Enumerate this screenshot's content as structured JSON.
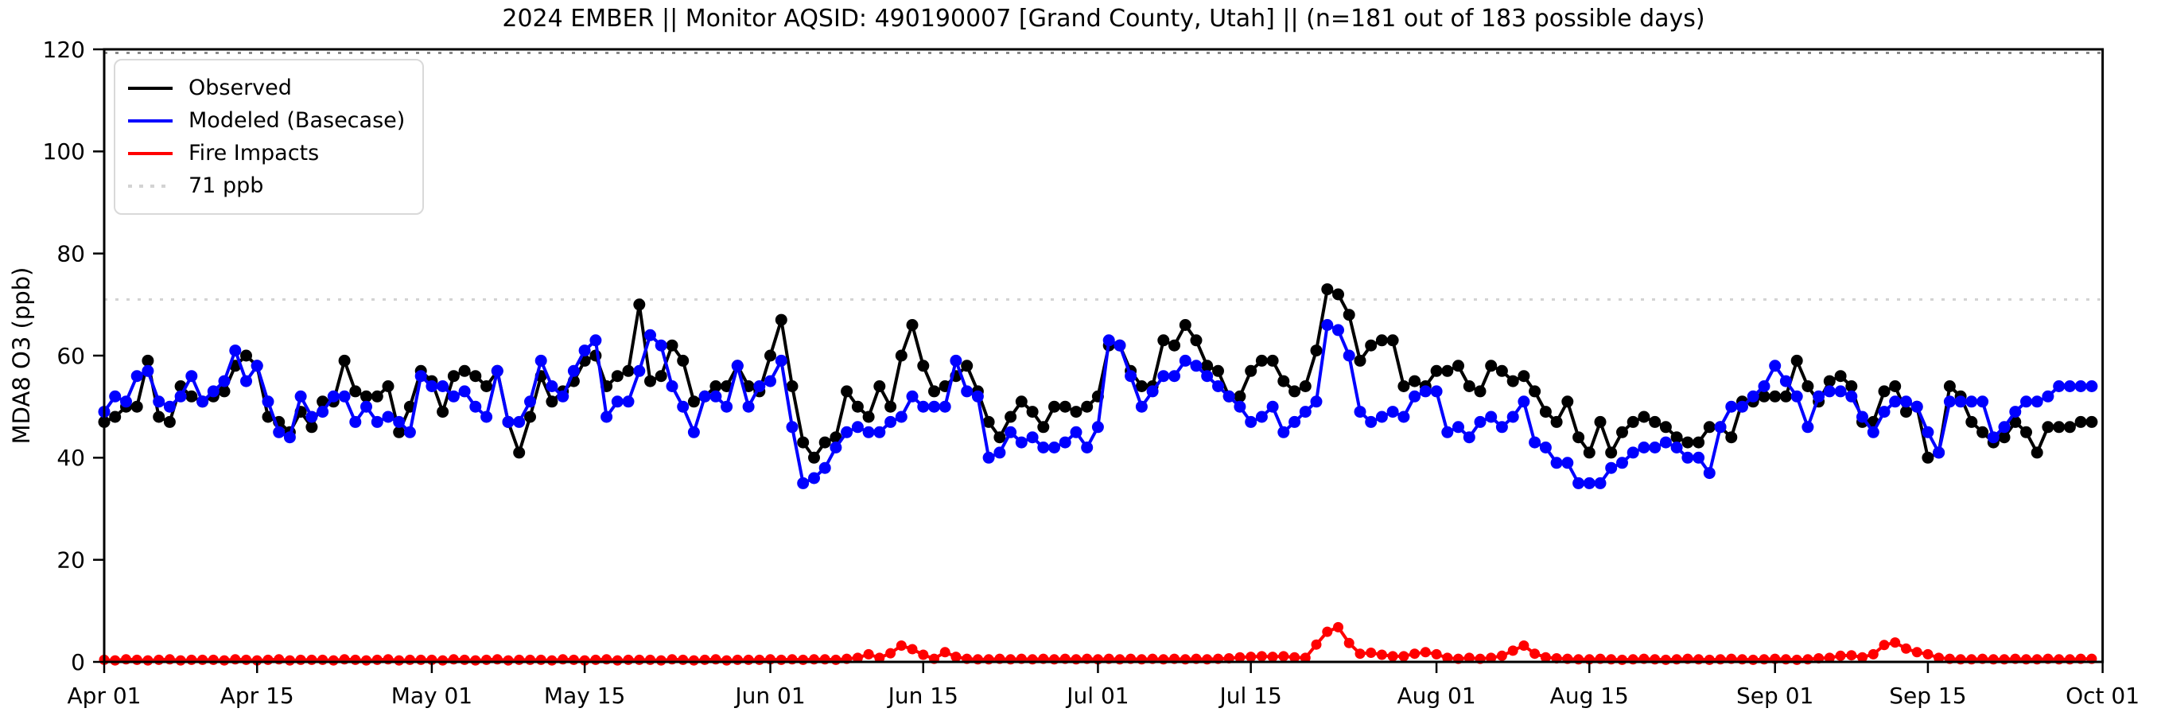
{
  "title": "2024 EMBER || Monitor AQSID: 490190007 [Grand County, Utah] || (n=181 out of 183 possible days)",
  "legend": [
    {
      "label": "Observed",
      "color": "#000000",
      "style": "solid"
    },
    {
      "label": "Modeled (Basecase)",
      "color": "#0000ff",
      "style": "solid"
    },
    {
      "label": "Fire Impacts",
      "color": "#ff0000",
      "style": "solid"
    },
    {
      "label": "71 ppb",
      "color": "#d3d3d3",
      "style": "dotted"
    }
  ],
  "chart_data": {
    "type": "line",
    "title": "2024 EMBER || Monitor AQSID: 490190007 [Grand County, Utah] || (n=181 out of 183 possible days)",
    "xlabel": "",
    "ylabel": "MDA8 O3 (ppb)",
    "ylim": [
      0,
      120
    ],
    "y_ticks": [
      0,
      20,
      40,
      60,
      80,
      100,
      120
    ],
    "x_range_days": 183,
    "x_start": "Apr 01",
    "x_end": "Oct 01",
    "x_ticks": [
      {
        "label": "Apr 01",
        "day": 0
      },
      {
        "label": "Apr 15",
        "day": 14
      },
      {
        "label": "May 01",
        "day": 30
      },
      {
        "label": "May 15",
        "day": 44
      },
      {
        "label": "Jun 01",
        "day": 61
      },
      {
        "label": "Jun 15",
        "day": 75
      },
      {
        "label": "Jul 01",
        "day": 91
      },
      {
        "label": "Jul 15",
        "day": 105
      },
      {
        "label": "Aug 01",
        "day": 122
      },
      {
        "label": "Aug 15",
        "day": 136
      },
      {
        "label": "Sep 01",
        "day": 153
      },
      {
        "label": "Sep 15",
        "day": 167
      },
      {
        "label": "Oct 01",
        "day": 183
      }
    ],
    "threshold_line": {
      "label": "71 ppb",
      "value": 71,
      "color": "#d3d3d3",
      "style": "dotted"
    },
    "top_reference_line": {
      "value": 119.3,
      "color": "#777777",
      "style": "dotted"
    },
    "grid": false,
    "legend_position": "upper left",
    "series": [
      {
        "name": "Observed",
        "color": "#000000",
        "marker": "circle",
        "marker_radius": 7.5,
        "line_width": 4,
        "values": [
          47,
          48,
          50,
          50,
          59,
          48,
          47,
          54,
          52,
          51,
          52,
          53,
          58,
          60,
          58,
          48,
          47,
          45,
          49,
          46,
          51,
          51,
          59,
          53,
          52,
          52,
          54,
          45,
          50,
          57,
          55,
          49,
          56,
          57,
          56,
          54,
          57,
          47,
          41,
          48,
          56,
          51,
          53,
          55,
          59,
          60,
          54,
          56,
          57,
          70,
          55,
          56,
          62,
          59,
          51,
          52,
          54,
          54,
          58,
          54,
          53,
          60,
          67,
          54,
          43,
          40,
          43,
          44,
          53,
          50,
          48,
          54,
          50,
          60,
          66,
          58,
          53,
          54,
          56,
          58,
          53,
          47,
          44,
          48,
          51,
          49,
          46,
          50,
          50,
          49,
          50,
          52,
          62,
          62,
          57,
          54,
          54,
          63,
          62,
          66,
          63,
          58,
          57,
          52,
          52,
          57,
          59,
          59,
          55,
          53,
          54,
          61,
          73,
          72,
          68,
          59,
          62,
          63,
          63,
          54,
          55,
          54,
          57,
          57,
          58,
          54,
          53,
          58,
          57,
          55,
          56,
          53,
          49,
          47,
          51,
          44,
          41,
          47,
          41,
          45,
          47,
          48,
          47,
          46,
          44,
          43,
          43,
          46,
          46,
          44,
          51,
          51,
          52,
          52,
          52,
          59,
          54,
          51,
          55,
          56,
          54,
          47,
          47,
          53,
          54,
          49,
          50,
          40,
          41,
          54,
          52,
          47,
          45,
          43,
          44,
          47,
          45,
          41,
          46,
          46,
          46,
          47,
          47
        ]
      },
      {
        "name": "Modeled (Basecase)",
        "color": "#0000ff",
        "marker": "circle",
        "marker_radius": 7.5,
        "line_width": 4,
        "values": [
          49,
          52,
          51,
          56,
          57,
          51,
          50,
          52,
          56,
          51,
          53,
          55,
          61,
          55,
          58,
          51,
          45,
          44,
          52,
          48,
          49,
          52,
          52,
          47,
          50,
          47,
          48,
          47,
          45,
          56,
          54,
          54,
          52,
          53,
          50,
          48,
          57,
          47,
          47,
          51,
          59,
          54,
          52,
          57,
          61,
          63,
          48,
          51,
          51,
          57,
          64,
          62,
          54,
          50,
          45,
          52,
          52,
          50,
          58,
          50,
          54,
          55,
          59,
          46,
          35,
          36,
          38,
          42,
          45,
          46,
          45,
          45,
          47,
          48,
          52,
          50,
          50,
          50,
          59,
          53,
          52,
          40,
          41,
          45,
          43,
          44,
          42,
          42,
          43,
          45,
          42,
          46,
          63,
          62,
          56,
          50,
          53,
          56,
          56,
          59,
          58,
          56,
          54,
          52,
          50,
          47,
          48,
          50,
          45,
          47,
          49,
          51,
          66,
          65,
          60,
          49,
          47,
          48,
          49,
          48,
          52,
          53,
          53,
          45,
          46,
          44,
          47,
          48,
          46,
          48,
          51,
          43,
          42,
          39,
          39,
          35,
          35,
          35,
          38,
          39,
          41,
          42,
          42,
          43,
          42,
          40,
          40,
          37,
          46,
          50,
          50,
          52,
          54,
          58,
          55,
          52,
          46,
          52,
          53,
          53,
          52,
          48,
          45,
          49,
          51,
          51,
          50,
          45,
          41,
          51,
          51,
          51,
          51,
          44,
          46,
          49,
          51,
          51,
          52,
          54,
          54,
          54,
          54
        ]
      },
      {
        "name": "Fire Impacts",
        "color": "#ff0000",
        "marker": "circle",
        "marker_radius": 6.5,
        "line_width": 4,
        "values": [
          0.4,
          0.3,
          0.5,
          0.4,
          0.3,
          0.4,
          0.5,
          0.3,
          0.4,
          0.4,
          0.4,
          0.3,
          0.5,
          0.4,
          0.3,
          0.4,
          0.5,
          0.3,
          0.4,
          0.4,
          0.4,
          0.3,
          0.5,
          0.4,
          0.3,
          0.4,
          0.5,
          0.3,
          0.4,
          0.4,
          0.4,
          0.3,
          0.5,
          0.4,
          0.3,
          0.4,
          0.5,
          0.3,
          0.4,
          0.4,
          0.4,
          0.3,
          0.5,
          0.4,
          0.3,
          0.4,
          0.5,
          0.3,
          0.4,
          0.4,
          0.4,
          0.3,
          0.5,
          0.4,
          0.3,
          0.4,
          0.5,
          0.3,
          0.4,
          0.4,
          0.4,
          0.5,
          0.4,
          0.5,
          0.4,
          0.5,
          0.5,
          0.4,
          0.6,
          0.8,
          1.5,
          0.8,
          1.7,
          3.2,
          2.5,
          1.4,
          0.6,
          1.9,
          1.0,
          0.6,
          0.5,
          0.5,
          0.6,
          0.5,
          0.6,
          0.5,
          0.6,
          0.5,
          0.6,
          0.5,
          0.6,
          0.5,
          0.6,
          0.5,
          0.6,
          0.5,
          0.6,
          0.5,
          0.6,
          0.5,
          0.6,
          0.5,
          0.6,
          0.7,
          0.9,
          1.0,
          1.1,
          1.0,
          1.1,
          0.9,
          0.8,
          3.4,
          5.9,
          6.8,
          3.7,
          1.6,
          1.8,
          1.4,
          1.1,
          1.1,
          1.6,
          1.9,
          1.5,
          0.8,
          0.6,
          0.8,
          0.6,
          0.8,
          1.2,
          2.2,
          3.2,
          1.6,
          0.9,
          0.7,
          0.6,
          0.5,
          0.5,
          0.6,
          0.5,
          0.4,
          0.5,
          0.6,
          0.5,
          0.4,
          0.5,
          0.6,
          0.5,
          0.4,
          0.5,
          0.6,
          0.5,
          0.4,
          0.5,
          0.6,
          0.5,
          0.4,
          0.5,
          0.7,
          0.8,
          1.2,
          1.3,
          0.9,
          1.5,
          3.3,
          3.8,
          2.6,
          1.9,
          1.5,
          0.8,
          0.6,
          0.5,
          0.5,
          0.6,
          0.5,
          0.5,
          0.6,
          0.5,
          0.5,
          0.6,
          0.5,
          0.5,
          0.6,
          0.6
        ]
      }
    ]
  }
}
